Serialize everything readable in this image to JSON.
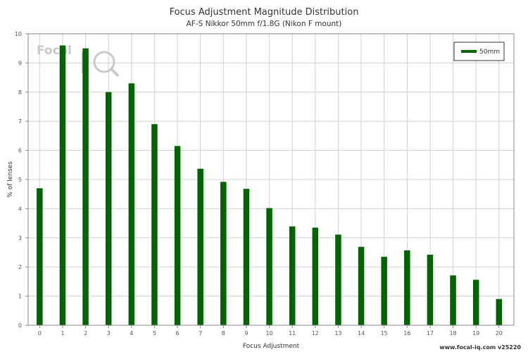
{
  "chart_data": {
    "type": "bar",
    "title": "Focus Adjustment Magnitude Distribution",
    "subtitle": "AF-S Nikkor 50mm f/1.8G (Nikon F mount)",
    "xlabel": "Focus Adjustment",
    "ylabel": "% of lenses",
    "categories": [
      "0",
      "1",
      "2",
      "3",
      "4",
      "5",
      "6",
      "7",
      "8",
      "9",
      "10",
      "11",
      "12",
      "13",
      "14",
      "15",
      "16",
      "17",
      "18",
      "19",
      "20"
    ],
    "series": [
      {
        "name": "50mm",
        "color": "#006400",
        "values": [
          4.7,
          9.6,
          9.5,
          8.0,
          8.3,
          6.9,
          6.15,
          5.37,
          4.92,
          4.68,
          4.02,
          3.39,
          3.35,
          3.11,
          2.69,
          2.35,
          2.57,
          2.42,
          1.71,
          1.56,
          0.9
        ]
      }
    ],
    "ylim": [
      0,
      10
    ],
    "yticks": [
      "0",
      "1",
      "2",
      "3",
      "4",
      "5",
      "6",
      "7",
      "8",
      "9",
      "10"
    ],
    "grid": true,
    "legend_position": "top-right"
  },
  "watermark": {
    "logo_text": "Focal",
    "icon": "magnifier-iq-icon"
  },
  "footer": {
    "credit": "www.focal-iq.com  v25220"
  }
}
